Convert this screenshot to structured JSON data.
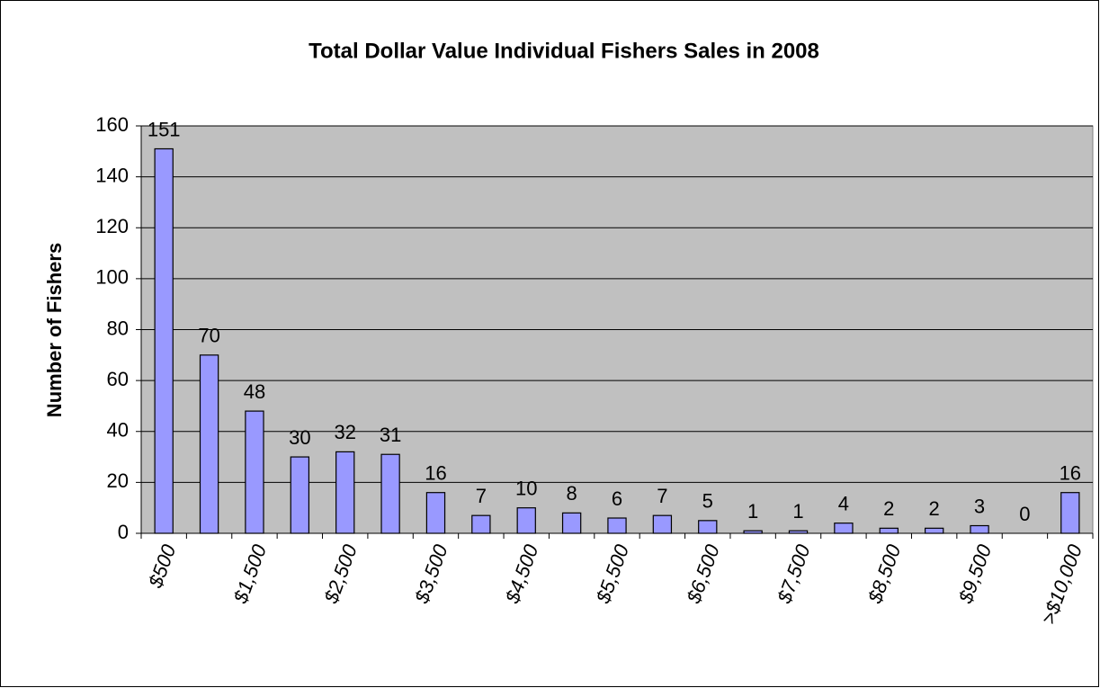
{
  "chart_data": {
    "type": "bar",
    "title": "Total Dollar Value Individual Fishers Sales in 2008",
    "y_label": "Number of Fishers",
    "categories": [
      "$500",
      null,
      "$1,500",
      null,
      "$2,500",
      null,
      "$3,500",
      null,
      "$4,500",
      null,
      "$5,500",
      null,
      "$6,500",
      null,
      "$7,500",
      null,
      "$8,500",
      null,
      "$9,500",
      null,
      ">$10,000"
    ],
    "values": [
      151,
      70,
      48,
      30,
      32,
      31,
      16,
      7,
      10,
      8,
      6,
      7,
      5,
      1,
      1,
      4,
      2,
      2,
      3,
      0,
      16
    ],
    "color": "#9999ff",
    "ylim": [
      0,
      160
    ],
    "yticks": [
      0,
      20,
      40,
      60,
      80,
      100,
      120,
      140,
      160
    ],
    "grid": true
  }
}
